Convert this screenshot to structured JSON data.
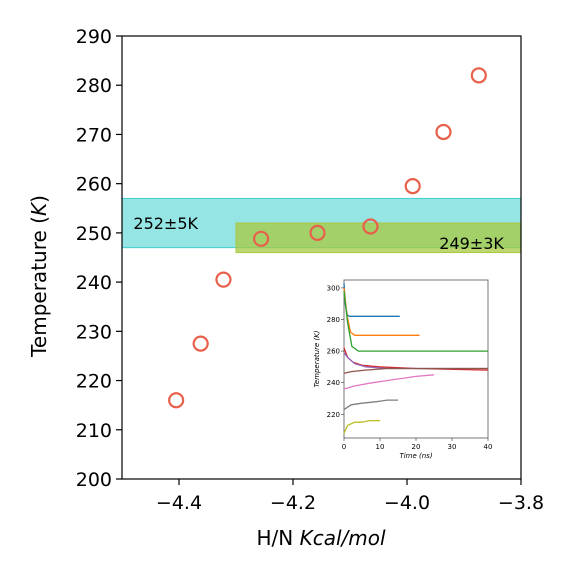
{
  "chart_data": {
    "type": "scatter",
    "xlabel_plain": "H/N ",
    "xlabel_italic": "Kcal/mol",
    "ylabel_plain": "Temperature (",
    "ylabel_italic": "K",
    "ylabel_close": ")",
    "xlim": [
      -4.5,
      -3.8
    ],
    "ylim": [
      200,
      290
    ],
    "x_ticks": [
      -4.4,
      -4.2,
      -4.0,
      -3.8
    ],
    "x_tick_labels": [
      "−4.4",
      "−4.2",
      "−4.0",
      "−3.8"
    ],
    "y_ticks": [
      200,
      210,
      220,
      230,
      240,
      250,
      260,
      270,
      280,
      290
    ],
    "y_tick_labels": [
      "200",
      "210",
      "220",
      "230",
      "240",
      "250",
      "260",
      "270",
      "280",
      "290"
    ],
    "grid": false,
    "points": {
      "x": [
        -4.405,
        -4.362,
        -4.322,
        -4.256,
        -4.157,
        -4.064,
        -3.99,
        -3.936,
        -3.874
      ],
      "y": [
        216,
        227.5,
        240.5,
        248.8,
        250,
        251.3,
        259.5,
        270.5,
        282
      ],
      "color": "#e8604a"
    },
    "bands": [
      {
        "label": "252±5K",
        "y0": 247,
        "y1": 257,
        "x0": -4.5,
        "x1": -3.8,
        "color": "#40cfd0"
      },
      {
        "label": "249±3K",
        "y0": 246,
        "y1": 252,
        "x0": -4.3,
        "x1": -3.8,
        "color": "#a8c840"
      }
    ],
    "inset": {
      "type": "line",
      "xlabel": "Time (ns)",
      "ylabel": "Temperature (K)",
      "xlim": [
        0,
        40
      ],
      "ylim": [
        205,
        305
      ],
      "x_ticks": [
        0,
        10,
        20,
        30,
        40
      ],
      "x_tick_labels": [
        "0",
        "10",
        "20",
        "30",
        "40"
      ],
      "y_ticks": [
        220,
        240,
        260,
        280,
        300
      ],
      "y_tick_labels": [
        "220",
        "240",
        "260",
        "280",
        "300"
      ],
      "series": [
        {
          "color": "#1f77b4",
          "x": [
            0,
            0.4,
            0.9,
            1.5,
            3,
            8,
            15.5
          ],
          "y": [
            303,
            289,
            283,
            282,
            282,
            282,
            282
          ]
        },
        {
          "color": "#ff7f0e",
          "x": [
            0,
            0.8,
            1.8,
            3,
            6,
            15,
            21
          ],
          "y": [
            300,
            283,
            272,
            270,
            270,
            270,
            270
          ]
        },
        {
          "color": "#2ca02c",
          "x": [
            0,
            1,
            2.2,
            4,
            8,
            20,
            40
          ],
          "y": [
            298,
            278,
            263,
            260,
            260,
            260,
            260
          ]
        },
        {
          "color": "#d62728",
          "x": [
            0,
            1,
            2.5,
            5,
            10,
            20,
            40
          ],
          "y": [
            262,
            256,
            253,
            251,
            250,
            249,
            248
          ]
        },
        {
          "color": "#9467bd",
          "x": [
            0,
            1,
            3,
            6,
            12,
            25,
            40
          ],
          "y": [
            259,
            256,
            252,
            250,
            249,
            249,
            249
          ]
        },
        {
          "color": "#8c564b",
          "x": [
            0,
            2,
            6,
            12,
            20,
            30,
            40
          ],
          "y": [
            246,
            247,
            248,
            249,
            249,
            249,
            249
          ]
        },
        {
          "color": "#e377c2",
          "x": [
            0,
            3,
            8,
            14,
            20,
            25
          ],
          "y": [
            236,
            238,
            240,
            242,
            244,
            245
          ]
        },
        {
          "color": "#7f7f7f",
          "x": [
            0,
            2,
            5,
            9,
            12,
            15
          ],
          "y": [
            223,
            226,
            227,
            228,
            229,
            229
          ]
        },
        {
          "color": "#bcbd22",
          "x": [
            0,
            1,
            3,
            5,
            7,
            10
          ],
          "y": [
            208,
            213,
            215,
            215,
            216,
            216
          ]
        }
      ]
    }
  }
}
